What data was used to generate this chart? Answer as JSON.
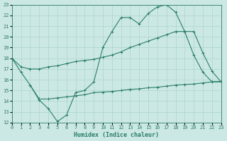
{
  "xlabel": "Humidex (Indice chaleur)",
  "color": "#2a7d6b",
  "bg_color": "#cce8e4",
  "grid_color": "#aad4ce",
  "ylim": [
    12,
    23
  ],
  "xlim": [
    0,
    23
  ],
  "yticks": [
    12,
    13,
    14,
    15,
    16,
    17,
    18,
    19,
    20,
    21,
    22,
    23
  ],
  "xticks": [
    0,
    1,
    2,
    3,
    4,
    5,
    6,
    7,
    8,
    9,
    10,
    11,
    12,
    13,
    14,
    15,
    16,
    17,
    18,
    19,
    20,
    21,
    22,
    23
  ],
  "y_jagged": [
    18,
    16.7,
    15.5,
    14.1,
    13.3,
    12.1,
    12.7,
    14.8,
    15.0,
    15.8,
    19.0,
    20.5,
    21.8,
    21.8,
    21.2,
    22.2,
    22.8,
    23.0,
    22.3,
    20.5,
    18.3,
    16.7,
    15.8,
    15.8
  ],
  "y_upper": [
    18.0,
    17.2,
    17.0,
    17.0,
    17.2,
    17.3,
    17.5,
    17.7,
    17.8,
    17.9,
    18.1,
    18.3,
    18.6,
    19.0,
    19.3,
    19.6,
    19.9,
    20.2,
    20.5,
    20.5,
    20.5,
    18.5,
    16.8,
    15.8
  ],
  "y_lower_x": [
    2,
    3,
    4,
    5,
    6,
    7,
    8,
    9,
    10,
    11,
    12,
    13,
    14,
    15,
    16,
    17,
    18,
    19,
    20,
    21,
    22,
    23
  ],
  "y_lower": [
    15.5,
    14.2,
    14.2,
    14.3,
    14.4,
    14.5,
    14.6,
    14.8,
    14.85,
    14.9,
    15.0,
    15.1,
    15.15,
    15.25,
    15.3,
    15.4,
    15.5,
    15.55,
    15.6,
    15.7,
    15.8,
    15.85
  ]
}
